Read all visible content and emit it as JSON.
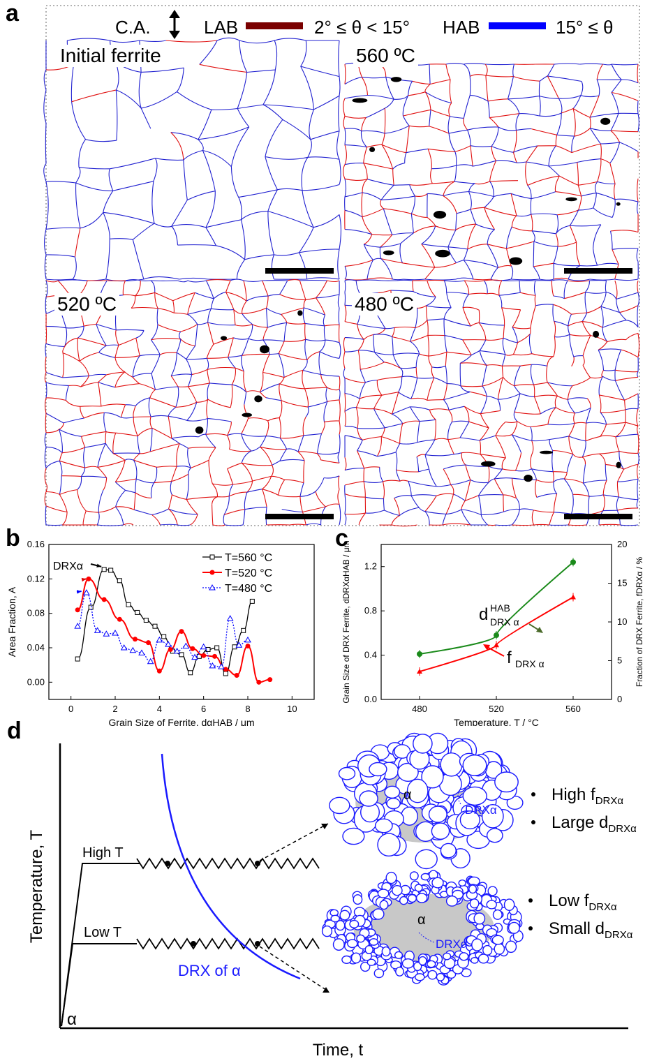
{
  "panel_a": {
    "label": "a",
    "legend": {
      "axis_label": "C.A.",
      "lab_label": "LAB",
      "lab_range": "2° ≤ θ < 15°",
      "hab_label": "HAB",
      "hab_range": "15° ≤ θ",
      "lab_color": "#7a0000",
      "hab_color": "#0000ff"
    },
    "maps": [
      {
        "label": "Initial ferrite"
      },
      {
        "label": "560 ºC"
      },
      {
        "label": "520 ºC"
      },
      {
        "label": "480 ºC"
      }
    ]
  },
  "chart_data": [
    {
      "panel": "b",
      "type": "line",
      "xlabel": "Grain Size of Ferrite, dαHAB / μm",
      "ylabel": "Area Fraction, A",
      "xlim": [
        -1,
        11
      ],
      "ylim": [
        -0.02,
        0.16
      ],
      "xticks": [
        "0",
        "2",
        "4",
        "6",
        "8",
        "10"
      ],
      "yticks": [
        "0.00",
        "0.04",
        "0.08",
        "0.12",
        "0.16"
      ],
      "legend_position": "top-right",
      "annotation": "DRXα",
      "series": [
        {
          "name": "T=560 °C",
          "color": "#000000",
          "marker": "square",
          "x": [
            0.3,
            0.9,
            1.5,
            1.8,
            2.2,
            2.6,
            3.0,
            3.4,
            3.8,
            4.2,
            4.6,
            5.0,
            5.4,
            5.8,
            6.2,
            6.6,
            7.0,
            7.4,
            7.8,
            8.2
          ],
          "y": [
            0.027,
            0.087,
            0.131,
            0.13,
            0.118,
            0.09,
            0.081,
            0.072,
            0.065,
            0.053,
            0.036,
            0.032,
            0.011,
            0.03,
            0.038,
            0.04,
            0.01,
            0.041,
            0.06,
            0.094
          ]
        },
        {
          "name": "T=520 °C",
          "color": "#ff0000",
          "marker": "circle",
          "x": [
            0.3,
            0.8,
            1.5,
            2.2,
            2.9,
            3.5,
            4.0,
            4.5,
            5.0,
            5.5,
            6.0,
            6.5,
            7.0,
            7.5,
            8.0,
            8.5,
            9.0
          ],
          "y": [
            0.084,
            0.12,
            0.096,
            0.073,
            0.05,
            0.046,
            0.013,
            0.038,
            0.059,
            0.039,
            0.031,
            0.03,
            0.015,
            0.008,
            0.042,
            0.0,
            0.003
          ]
        },
        {
          "name": "T=480 °C",
          "color": "#0000ff",
          "marker": "triangle",
          "x": [
            0.3,
            0.7,
            1.2,
            1.6,
            2.0,
            2.4,
            2.8,
            3.2,
            3.6,
            4.0,
            4.4,
            4.8,
            5.2,
            5.6,
            6.0,
            6.4,
            6.8,
            7.2,
            7.6,
            8.0
          ],
          "y": [
            0.065,
            0.104,
            0.06,
            0.056,
            0.057,
            0.04,
            0.037,
            0.034,
            0.024,
            0.049,
            0.044,
            0.036,
            0.042,
            0.029,
            0.041,
            0.019,
            0.018,
            0.074,
            0.043,
            0.049
          ]
        }
      ]
    },
    {
      "panel": "c",
      "type": "line",
      "xlabel": "Temperature, T / °C",
      "ylabel": "Grain Size of DRX Ferrite, dDRXαHAB / μm",
      "y2label": "Fraction of DRX Ferrite, fDRXα / %",
      "xlim": [
        460,
        580
      ],
      "ylim": [
        0,
        1.4
      ],
      "y2lim": [
        0,
        20
      ],
      "xticks": [
        "480",
        "520",
        "560"
      ],
      "yticks": [
        "0.0",
        "0.4",
        "0.8",
        "1.2"
      ],
      "y2ticks": [
        "0",
        "5",
        "10",
        "15",
        "20"
      ],
      "categories": [
        480,
        520,
        560
      ],
      "series": [
        {
          "name": "d",
          "label_main": "d",
          "label_sup": "HAB",
          "label_sub": "DRX α",
          "axis": "left",
          "color": "#1a8a1a",
          "values": [
            0.41,
            0.58,
            1.24
          ]
        },
        {
          "name": "f",
          "label_main": "f",
          "label_sub": "DRX α",
          "axis": "right",
          "color": "#ff0000",
          "values": [
            3.6,
            7.0,
            13.2
          ]
        }
      ]
    }
  ],
  "panel_b": {
    "label": "b"
  },
  "panel_c": {
    "label": "c"
  },
  "panel_d": {
    "label": "d",
    "ylabel": "Temperature, T",
    "xlabel": "Time, t",
    "alpha_label": "α",
    "high_t": "High T",
    "low_t": "Low T",
    "curve_label": "DRX of α",
    "upper": {
      "alpha": "α",
      "drx": "DRXα",
      "bullet1_main": "High f",
      "bullet1_sub": "DRXα",
      "bullet2_main": "Large d",
      "bullet2_sub": "DRXα"
    },
    "lower": {
      "alpha": "α",
      "drx": "DRXα",
      "bullet1_main": "Low f",
      "bullet1_sub": "DRXα",
      "bullet2_main": "Small d",
      "bullet2_sub": "DRXα"
    }
  }
}
